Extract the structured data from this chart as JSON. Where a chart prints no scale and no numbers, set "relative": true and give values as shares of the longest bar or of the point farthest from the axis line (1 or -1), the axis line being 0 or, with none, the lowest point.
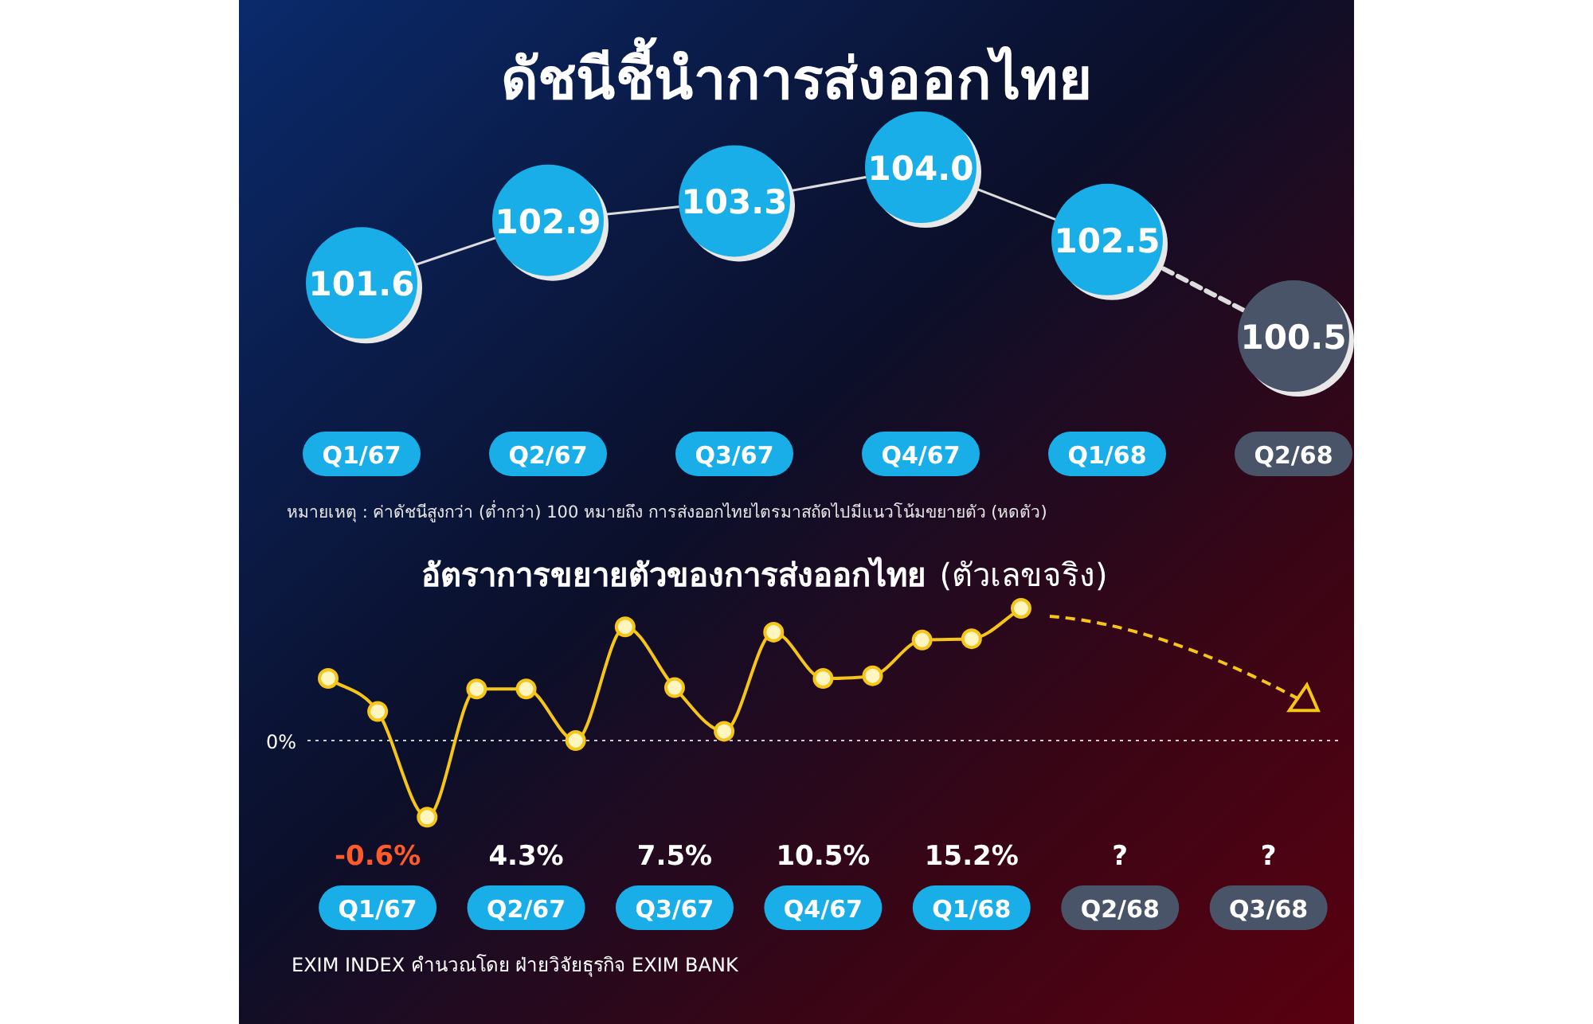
{
  "chart_data": [
    {
      "type": "line",
      "title": "ดัชนีชี้นำการส่งออกไทย",
      "categories": [
        "Q1/67",
        "Q2/67",
        "Q3/67",
        "Q4/67",
        "Q1/68",
        "Q2/68"
      ],
      "values": [
        101.6,
        102.9,
        103.3,
        104.0,
        102.5,
        100.5
      ],
      "colors": [
        "#1aaee8",
        "#1aaee8",
        "#1aaee8",
        "#1aaee8",
        "#1aaee8",
        "#4a5468"
      ],
      "value_labels": [
        "101.6",
        "102.9",
        "103.3",
        "104.0",
        "102.5",
        "100.5"
      ],
      "annotations": [
        "หมายเหตุ : ค่าดัชนีสูงกว่า (ต่ำกว่า) 100 หมายถึง การส่งออกไทยไตรมาสถัดไปมีแนวโน้มขยายตัว (หดตัว)"
      ]
    },
    {
      "type": "line",
      "title": "อัตราการขยายตัวของการส่งออกไทย",
      "subtitle": "(ตัวเลขจริง)",
      "relative": true,
      "categories": [
        null,
        "Q1/67",
        null,
        null,
        "Q2/67",
        null,
        null,
        "Q3/67",
        null,
        null,
        "Q4/67",
        null,
        null,
        "Q1/68",
        null,
        null,
        "Q2/68",
        null,
        null,
        "Q3/68",
        null
      ],
      "series": [
        {
          "color": "#f5c518",
          "values": [
            0.47,
            0.22,
            -0.58,
            0.39,
            0.39,
            0.0,
            0.86,
            0.4,
            0.07,
            0.82,
            0.47,
            0.49,
            0.76,
            0.77,
            1.0,
            null,
            null,
            null,
            null,
            null,
            null
          ]
        }
      ],
      "marker": "circle",
      "ref_lines": [
        {
          "axis": "y",
          "value": 0,
          "label": "0%",
          "line_style": "dotted",
          "color": "#cccccc"
        }
      ],
      "annotations": [
        "-0.6%",
        "4.3%",
        "7.5%",
        "10.5%",
        "15.2%",
        "?",
        "?",
        "EXIM INDEX คำนวณโดย ฝ่ายวิจัยธุรกิจ EXIM BANK"
      ]
    }
  ]
}
